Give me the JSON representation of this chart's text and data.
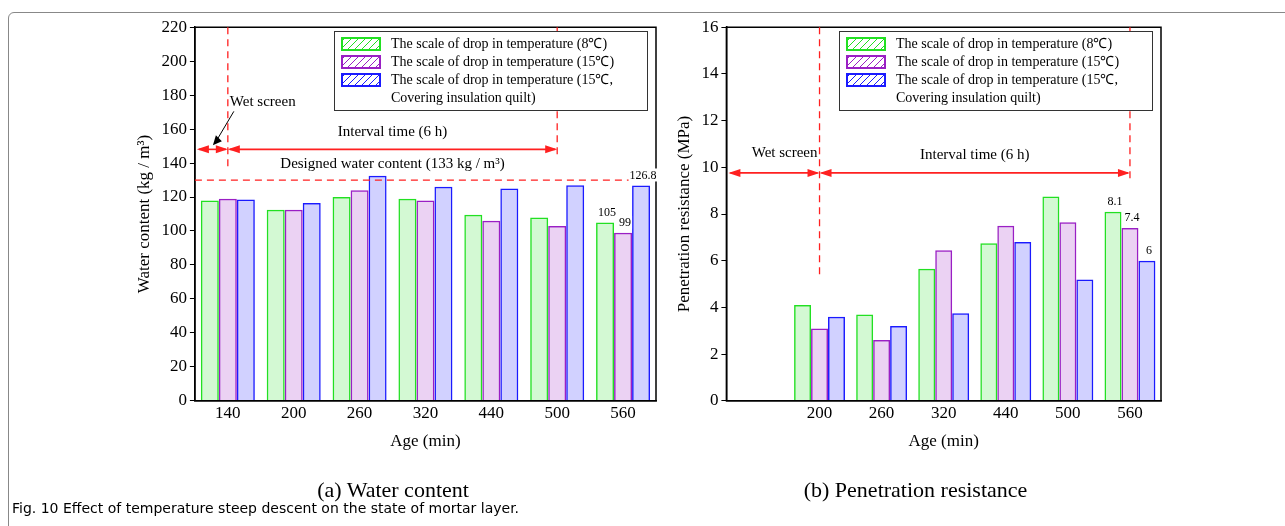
{
  "chart_data": [
    {
      "type": "bar",
      "title": "(a) Water content",
      "xlabel": "Age (min)",
      "ylabel": "Water content (kg / m³)",
      "categories": [
        "140",
        "200",
        "260",
        "320",
        "440",
        "500",
        "560"
      ],
      "ylim": [
        0,
        220
      ],
      "yticks": [
        0,
        20,
        40,
        60,
        80,
        100,
        120,
        140,
        160,
        180,
        200,
        220
      ],
      "grid": false,
      "legend": "top right",
      "series": [
        {
          "name": "The scale of drop in temperature (8℃)",
          "color": "#22e022",
          "values": [
            118,
            112.5,
            120,
            119,
            109.5,
            108,
            105
          ],
          "value_labels": [
            null,
            null,
            null,
            null,
            null,
            null,
            "105"
          ]
        },
        {
          "name": "The scale of drop in temperature (15℃)",
          "color": "#9a1fc4",
          "values": [
            119,
            112.5,
            124,
            118,
            106,
            103,
            99
          ],
          "value_labels": [
            null,
            null,
            null,
            null,
            null,
            null,
            "99"
          ]
        },
        {
          "name": "The scale of drop in temperature (15℃, Covering insulation quilt)",
          "color": "#1a1aff",
          "values": [
            118.5,
            116.5,
            132.5,
            126,
            125,
            127,
            126.8
          ],
          "value_labels": [
            null,
            null,
            null,
            null,
            null,
            null,
            "126.8"
          ]
        }
      ],
      "ref_lines": [
        {
          "axis": "x",
          "value": "140",
          "color": "#ff2020",
          "line_style": "dashed"
        },
        {
          "axis": "x",
          "value": "500",
          "color": "#ff2020",
          "line_style": "dashed"
        },
        {
          "axis": "y",
          "value": 130,
          "color": "#ff2020",
          "line_style": "dashed",
          "label": "Designed water content (133 kg / m³)"
        }
      ],
      "annotations": [
        "Wet screen",
        "Interval time (6 h)",
        "Fig. 10  Effect of temperature steep descent on the state of mortar layer."
      ]
    },
    {
      "type": "bar",
      "title": "(b) Penetration resistance",
      "xlabel": "Age (min)",
      "ylabel": "Penetration resistance (MPa)",
      "categories": [
        null,
        "200",
        "260",
        "320",
        "440",
        "500",
        "560"
      ],
      "ylim": [
        0,
        16
      ],
      "yticks": [
        0,
        2,
        4,
        6,
        8,
        10,
        12,
        14,
        16
      ],
      "grid": false,
      "legend": "top right",
      "series": [
        {
          "name": "The scale of drop in temperature (8℃)",
          "color": "#22e022",
          "values": [
            null,
            4.1,
            3.7,
            5.65,
            6.75,
            8.75,
            8.1
          ],
          "value_labels": [
            null,
            null,
            null,
            null,
            null,
            null,
            "8.1"
          ]
        },
        {
          "name": "The scale of drop in temperature (15℃)",
          "color": "#9a1fc4",
          "values": [
            null,
            3.1,
            2.6,
            6.45,
            7.5,
            7.65,
            7.4
          ],
          "value_labels": [
            null,
            null,
            null,
            null,
            null,
            null,
            "7.4"
          ]
        },
        {
          "name": "The scale of drop in temperature (15℃, Covering insulation quilt)",
          "color": "#1a1aff",
          "values": [
            null,
            3.6,
            3.2,
            3.75,
            6.8,
            5.2,
            6
          ],
          "value_labels": [
            null,
            null,
            null,
            null,
            null,
            null,
            "6"
          ]
        }
      ],
      "ref_lines": [
        {
          "axis": "x",
          "value": "200",
          "color": "#ff2020",
          "line_style": "dashed"
        },
        {
          "axis": "x",
          "value": "560",
          "color": "#ff2020",
          "line_style": "dashed"
        }
      ],
      "annotations": [
        "Wet screen",
        "Interval time (6 h)"
      ]
    }
  ]
}
